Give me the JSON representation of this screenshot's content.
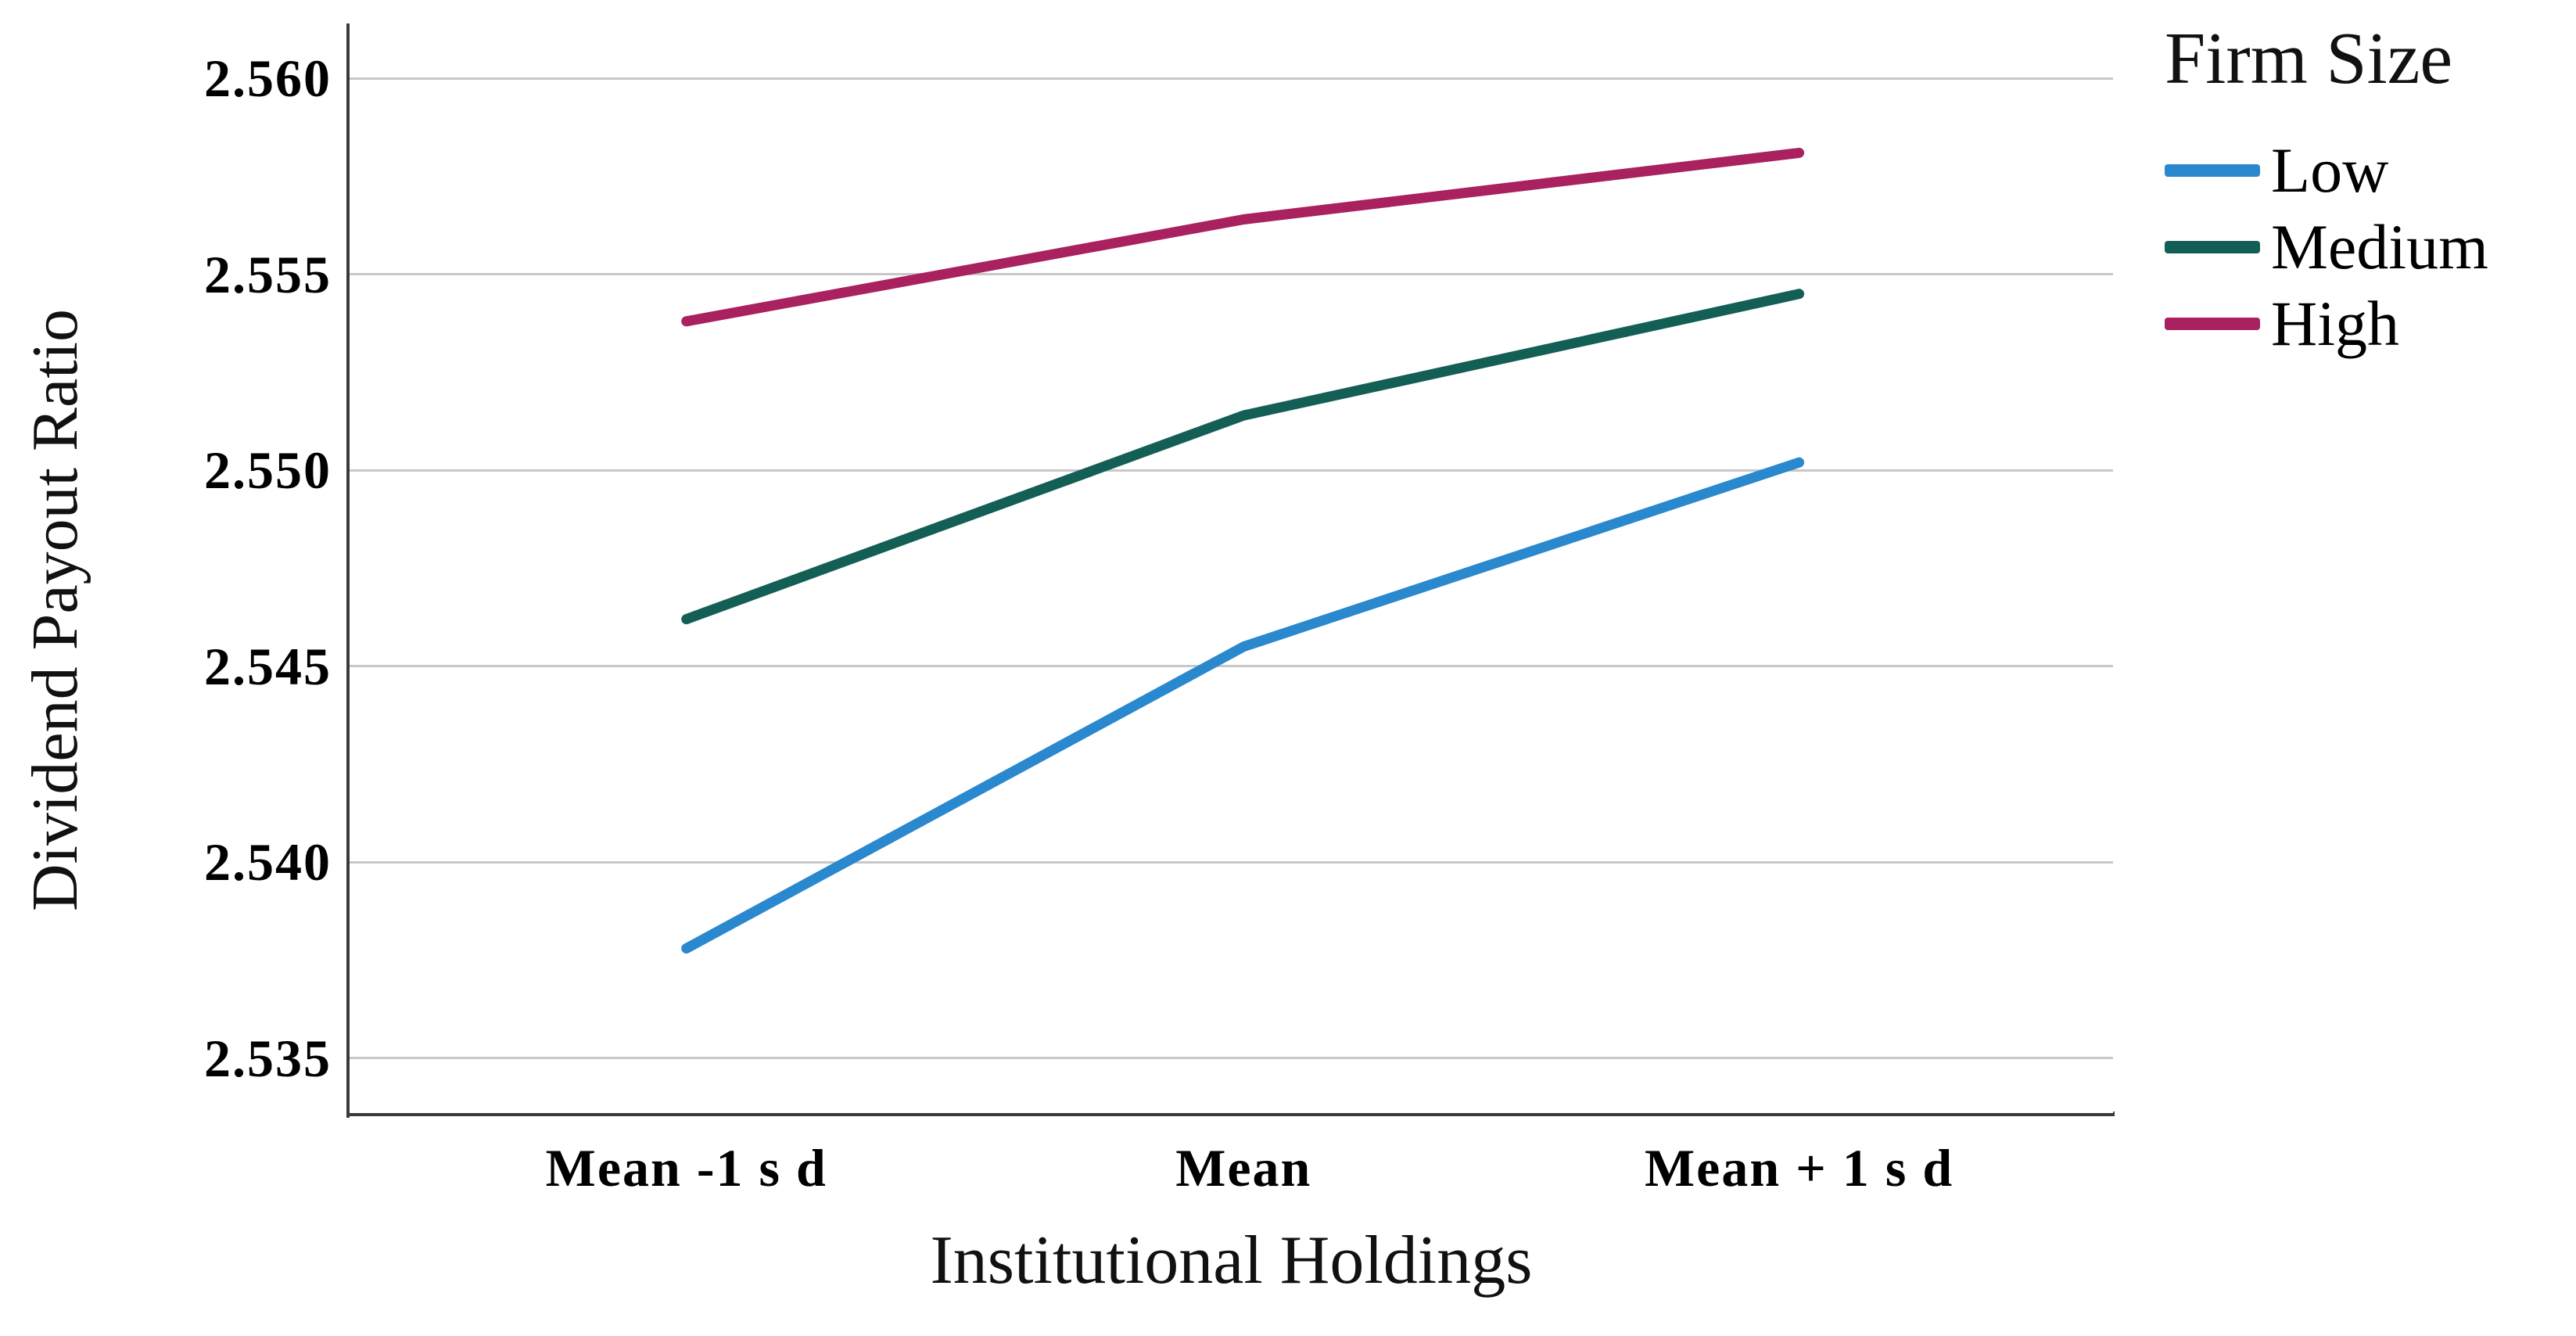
{
  "figure": {
    "background": "#ffffff",
    "text_color": "#000000",
    "grid_color": "#c8c8c8",
    "axis_color": "#3a3a3a"
  },
  "chart_data": {
    "type": "line",
    "title": "",
    "legend_title": "Firm Size",
    "legend_position": "top-right",
    "xlabel": "Institutional Holdings",
    "ylabel": "Dividend Payout Ratio",
    "categories": [
      "Mean -1 s d",
      "Mean",
      "Mean + 1 s d"
    ],
    "x_positions": [
      0.191,
      0.507,
      0.822
    ],
    "series": [
      {
        "name": "Low",
        "color": "#2A88CE",
        "values": [
          2.5378,
          2.5455,
          2.5502
        ]
      },
      {
        "name": "Medium",
        "color": "#145F55",
        "values": [
          2.5462,
          2.5514,
          2.5545
        ]
      },
      {
        "name": "High",
        "color": "#A9215E",
        "values": [
          2.5538,
          2.5564,
          2.5581
        ]
      }
    ],
    "yticks": [
      {
        "value": 2.56,
        "label": "2.560"
      },
      {
        "value": 2.555,
        "label": "2.555"
      },
      {
        "value": 2.55,
        "label": "2.550"
      },
      {
        "value": 2.545,
        "label": "2.545"
      },
      {
        "value": 2.54,
        "label": "2.540"
      },
      {
        "value": 2.535,
        "label": "2.535"
      }
    ],
    "ylim": [
      2.5336,
      2.5614
    ],
    "grid": "horizontal",
    "line_width": 13
  }
}
